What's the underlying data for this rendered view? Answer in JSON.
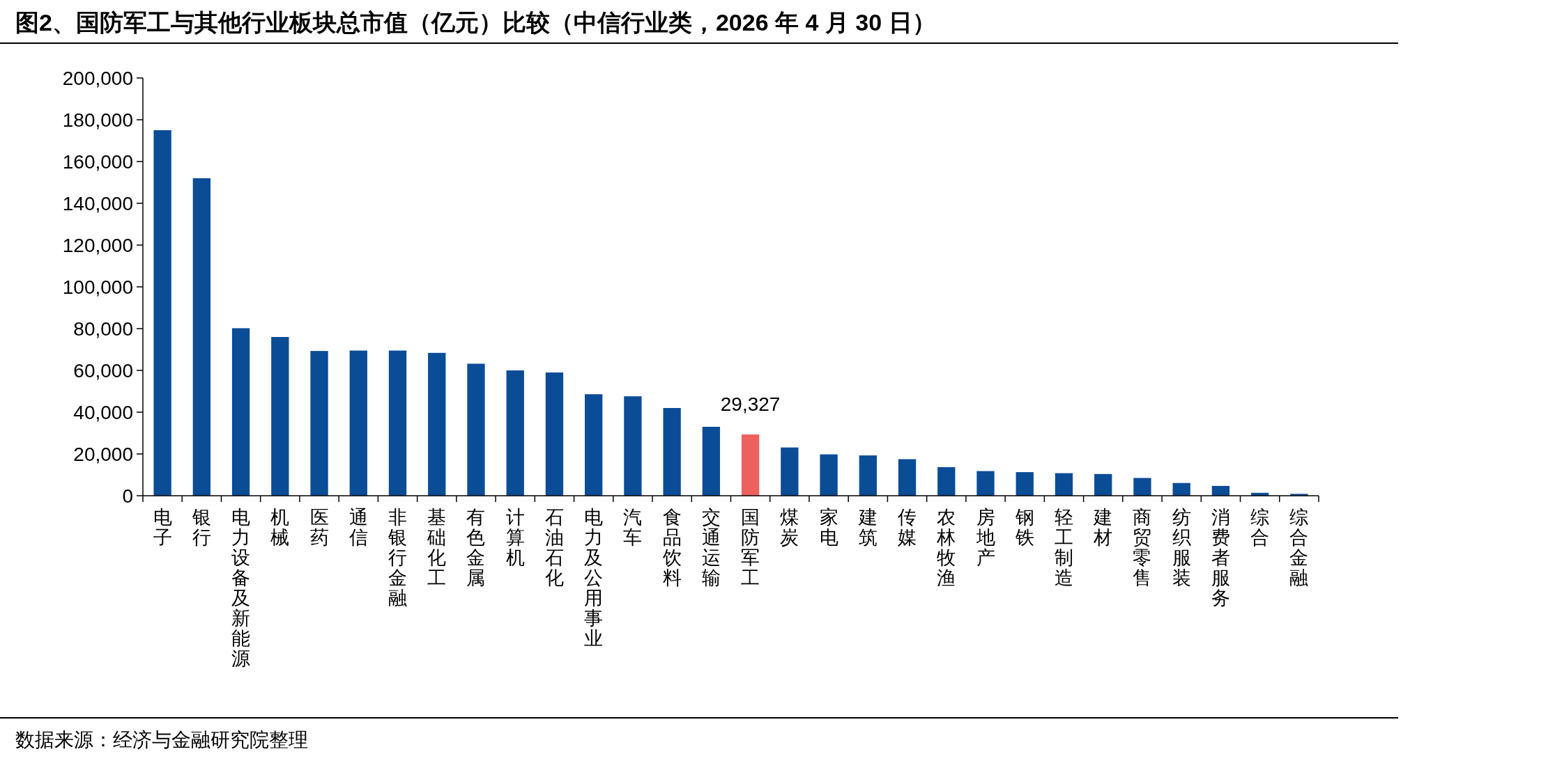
{
  "chart_data": {
    "type": "bar",
    "title": "图2、国防军工与其他行业板块总市值（亿元）比较（中信行业类，2026 年 4 月 30 日）",
    "categories": [
      "电子",
      "银行",
      "电力设备及新能源",
      "机械",
      "医药",
      "通信",
      "非银行金融",
      "基础化工",
      "有色金属",
      "计算机",
      "石油石化",
      "电力及公用事业",
      "汽车",
      "食品饮料",
      "交通运输",
      "国防军工",
      "煤炭",
      "家电",
      "建筑",
      "传媒",
      "农林牧渔",
      "房地产",
      "钢铁",
      "轻工制造",
      "建材",
      "商贸零售",
      "纺织服装",
      "消费者服务",
      "综合",
      "综合金融"
    ],
    "values": [
      175000,
      152000,
      80200,
      76000,
      69300,
      69500,
      69500,
      68400,
      63200,
      60000,
      59000,
      48600,
      47600,
      42000,
      33000,
      29327,
      23100,
      19800,
      19300,
      17500,
      13700,
      11800,
      11300,
      10800,
      10400,
      8500,
      6100,
      4700,
      1400,
      900
    ],
    "colors": [
      "#0b4c97",
      "#0b4c97",
      "#0b4c97",
      "#0b4c97",
      "#0b4c97",
      "#0b4c97",
      "#0b4c97",
      "#0b4c97",
      "#0b4c97",
      "#0b4c97",
      "#0b4c97",
      "#0b4c97",
      "#0b4c97",
      "#0b4c97",
      "#0b4c97",
      "#ee6060",
      "#0b4c97",
      "#0b4c97",
      "#0b4c97",
      "#0b4c97",
      "#0b4c97",
      "#0b4c97",
      "#0b4c97",
      "#0b4c97",
      "#0b4c97",
      "#0b4c97",
      "#0b4c97",
      "#0b4c97",
      "#0b4c97",
      "#0b4c97"
    ],
    "value_labels": [
      null,
      null,
      null,
      null,
      null,
      null,
      null,
      null,
      null,
      null,
      null,
      null,
      null,
      null,
      null,
      "29,327",
      null,
      null,
      null,
      null,
      null,
      null,
      null,
      null,
      null,
      null,
      null,
      null,
      null,
      null
    ],
    "ylim": [
      0,
      200000
    ],
    "yticks": [
      0,
      {
        "value": 20000,
        "label": "20,000"
      },
      {
        "value": 40000,
        "label": "40,000"
      },
      {
        "value": 60000,
        "label": "60,000"
      },
      {
        "value": 80000,
        "label": "80,000"
      },
      {
        "value": 100000,
        "label": "100,000"
      },
      {
        "value": 120000,
        "label": "120,000"
      },
      {
        "value": 140000,
        "label": "140,000"
      },
      {
        "value": 160000,
        "label": "160,000"
      },
      {
        "value": 180000,
        "label": "180,000"
      },
      {
        "value": 200000,
        "label": "200,000"
      }
    ],
    "annotations": [
      "数据来源：经济与金融研究院整理"
    ]
  }
}
